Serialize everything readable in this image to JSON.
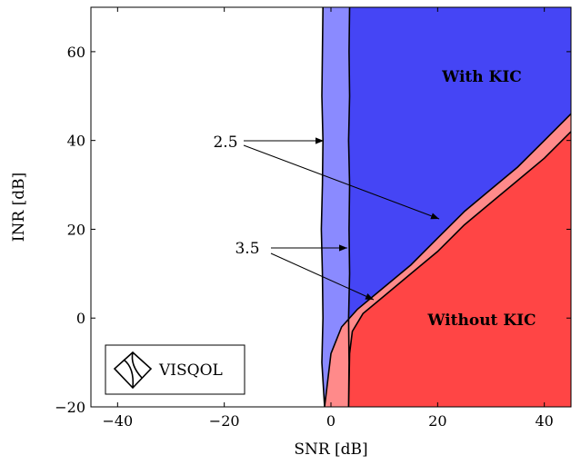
{
  "chart_data": {
    "type": "area",
    "title": "",
    "xlabel": "SNR [dB]",
    "ylabel": "INR [dB]",
    "xlim": [
      -45,
      45
    ],
    "ylim": [
      -20,
      70
    ],
    "xticks": [
      -40,
      -20,
      0,
      20,
      40
    ],
    "yticks": [
      -20,
      0,
      20,
      40,
      60
    ],
    "xtick_labels": [
      "−40",
      "−20",
      "0",
      "20",
      "40"
    ],
    "ytick_labels": [
      "−20",
      "0",
      "20",
      "40",
      "60"
    ],
    "grid": false,
    "colors": {
      "with_kic": "#4545f5",
      "with_kic_band": "#8a8aff",
      "without_kic": "#ff4545",
      "without_kic_band": "#ff8a8a",
      "outline": "#000000"
    },
    "series": [
      {
        "name": "2.5",
        "x": [
          -1.5,
          -1.6,
          -1.7,
          -1.5,
          -1.6,
          -1.8,
          -1.6,
          -1.5,
          -1.7,
          -1.2,
          0.0,
          2.0,
          5.0,
          9.0,
          15.0,
          20.0,
          25.0,
          30.0,
          35.0,
          40.0,
          45.0
        ],
        "y": [
          70,
          60,
          50,
          40,
          30,
          20,
          10,
          0,
          -10,
          -20,
          -8,
          -2,
          2,
          6,
          12,
          18,
          24,
          29,
          34,
          40,
          46
        ]
      },
      {
        "name": "3.5",
        "x": [
          3.5,
          3.4,
          3.5,
          3.3,
          3.5,
          3.4,
          3.5,
          3.3,
          3.4,
          3.3,
          3.5,
          4.0,
          6.0,
          10.0,
          15.0,
          20.0,
          25.0,
          30.0,
          35.0,
          40.0,
          45.0
        ],
        "y": [
          70,
          60,
          50,
          40,
          30,
          20,
          10,
          0,
          -10,
          -20,
          -8,
          -3,
          1,
          5,
          10,
          15,
          21,
          26,
          31,
          36,
          42
        ]
      }
    ],
    "annotations": [
      {
        "text": "With KIC",
        "x": 27,
        "y": 54
      },
      {
        "text": "Without KIC",
        "x": 27,
        "y": 0
      },
      {
        "text": "2.5",
        "x": -26,
        "y": 40
      },
      {
        "text": "3.5",
        "x": -26,
        "y": 16
      }
    ],
    "legend_text": "VISQOL",
    "legend_placement": "bottom-left"
  }
}
